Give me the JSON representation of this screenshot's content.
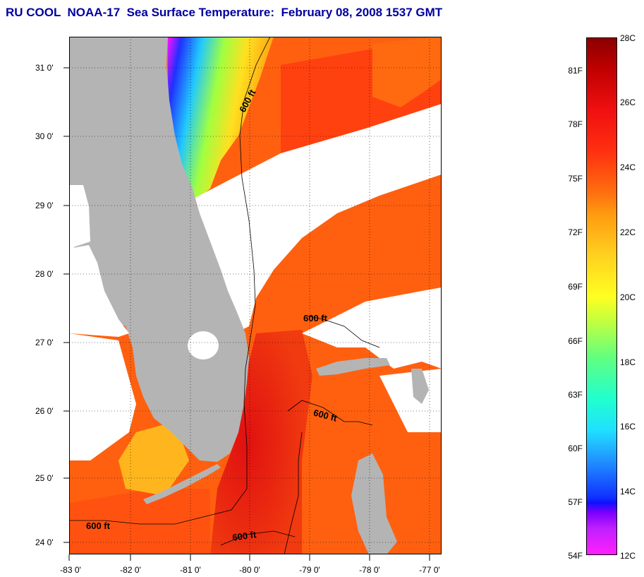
{
  "title": "RU COOL  NOAA-17  Sea Surface Temperature:  February 08, 2008 1537 GMT",
  "map": {
    "lat_labels": [
      "31 0'",
      "30 0'",
      "29 0'",
      "28 0'",
      "27 0'",
      "26 0'",
      "25 0'",
      "24 0'"
    ],
    "lon_labels": [
      "-83 0'",
      "-82 0'",
      "-81 0'",
      "-80 0'",
      "-79 0'",
      "-78 0'",
      "-77 0'"
    ],
    "isobath_labels": [
      "600 ft",
      "600 ft",
      "600 ft",
      "600 ft",
      "600 ft"
    ],
    "colors": {
      "land": "#b4b4b4",
      "cloud": "#ffffff",
      "warm": "#ee2010",
      "orange": "#ff6a10",
      "cool_blue": "#2a60ff"
    }
  },
  "colorbar": {
    "fahrenheit_labels": [
      "81F",
      "78F",
      "75F",
      "72F",
      "69F",
      "66F",
      "63F",
      "60F",
      "57F",
      "54F"
    ],
    "celsius_labels": [
      "28C",
      "26C",
      "24C",
      "22C",
      "20C",
      "18C",
      "16C",
      "14C",
      "12C"
    ],
    "range_c": [
      12,
      28
    ]
  }
}
